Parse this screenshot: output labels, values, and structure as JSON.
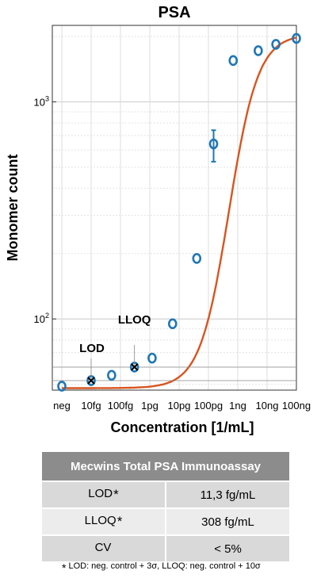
{
  "chart_data": {
    "type": "scatter",
    "title": "PSA",
    "xlabel": "Concentration [1/mL]",
    "ylabel": "Monomer count",
    "x_scale": "log",
    "y_scale": "log",
    "x_tick_labels": [
      "neg",
      "10fg",
      "100fg",
      "1pg",
      "10pg",
      "100pg",
      "1ng",
      "10ng",
      "100ng"
    ],
    "y_tick_values": [
      100,
      1000
    ],
    "ylim": [
      47,
      2250
    ],
    "grid": true,
    "points": [
      {
        "x": "neg",
        "y": 49
      },
      {
        "x": "10fg",
        "y": 52
      },
      {
        "x": "50fg",
        "y": 55
      },
      {
        "x": "300fg",
        "y": 60
      },
      {
        "x": "1.2pg",
        "y": 66
      },
      {
        "x": "6pg",
        "y": 95
      },
      {
        "x": "40pg",
        "y": 190
      },
      {
        "x": "150pg",
        "y": 640,
        "err_low": 530,
        "err_high": 740
      },
      {
        "x": "700pg",
        "y": 1550
      },
      {
        "x": "5ng",
        "y": 1720
      },
      {
        "x": "20ng",
        "y": 1840
      },
      {
        "x": "100ng",
        "y": 1960
      }
    ],
    "fit_curve": "sigmoid",
    "annotations": {
      "lod": {
        "label": "LOD",
        "x": "10fg",
        "y": 52
      },
      "lloq": {
        "label": "LLOQ",
        "x": "300fg",
        "y": 60
      }
    },
    "colors": {
      "points": "#1f77b4",
      "fit": "#d9541f",
      "marker": "#000000"
    }
  },
  "table": {
    "title": "Mecwins Total PSA Immunoassay",
    "rows": [
      {
        "label": "LOD",
        "star": "*",
        "value": "11,3 fg/mL"
      },
      {
        "label": "LLOQ",
        "star": "*",
        "value": "308 fg/mL"
      },
      {
        "label": "CV",
        "star": "",
        "value": "< 5%"
      }
    ]
  },
  "footnote": {
    "star": "*",
    "text": "LOD: neg. control + 3σ, LLOQ: neg. control + 10σ"
  }
}
